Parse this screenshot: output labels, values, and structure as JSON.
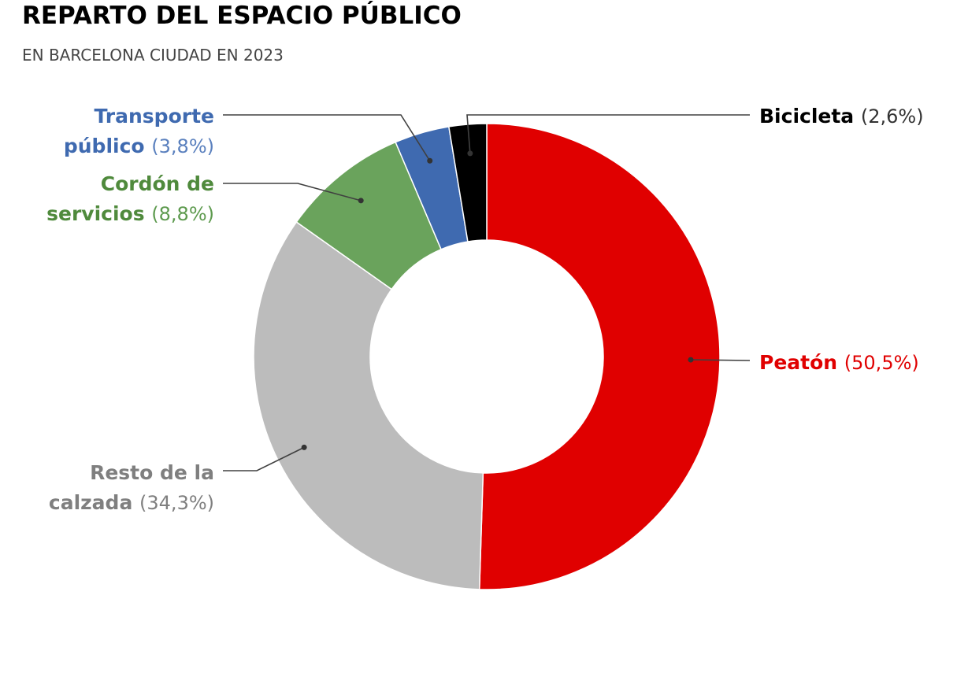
{
  "title": "REPARTO DEL ESPACIO PÚBLICO",
  "subtitle": "EN BARCELONA CIUDAD EN 2023",
  "chart_data": {
    "type": "pie",
    "donut": true,
    "order": "clockwise-from-top",
    "slices": [
      {
        "name_lines": [
          "Peatón"
        ],
        "value": 50.5,
        "percent_label": "(50,5%)",
        "color": "#e00000",
        "label_color": "#e00000",
        "pct_color": "#e00000"
      },
      {
        "name_lines": [
          "Resto de la",
          "calzada"
        ],
        "value": 34.3,
        "percent_label": "(34,3%)",
        "color": "#bcbcbc",
        "label_color": "#7f7f7f",
        "pct_color": "#7f7f7f"
      },
      {
        "name_lines": [
          "Cordón de",
          "servicios"
        ],
        "value": 8.8,
        "percent_label": "(8,8%)",
        "color": "#6aa35c",
        "label_color": "#4f8a3c",
        "pct_color": "#5d9a4e"
      },
      {
        "name_lines": [
          "Transporte",
          "público"
        ],
        "value": 3.8,
        "percent_label": "(3,8%)",
        "color": "#3f6ab0",
        "label_color": "#3f6ab0",
        "pct_color": "#5a80be"
      },
      {
        "name_lines": [
          "Bicicleta"
        ],
        "value": 2.6,
        "percent_label": "(2,6%)",
        "color": "#000000",
        "label_color": "#000000",
        "pct_color": "#333333"
      }
    ]
  }
}
